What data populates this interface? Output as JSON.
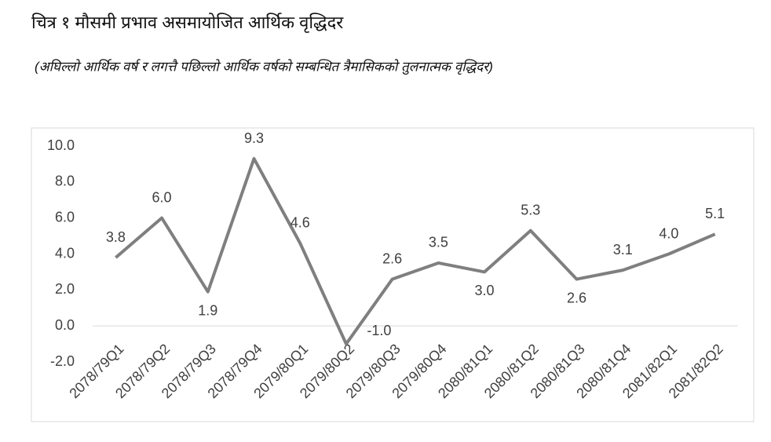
{
  "chart_data": {
    "type": "line",
    "title": "चित्र १ मौसमी प्रभाव असमायोजित आर्थिक वृद्धिदर",
    "subtitle": "(अघिल्लो आर्थिक वर्ष र लगत्तै पछिल्लो आर्थिक वर्षको सम्बन्धित त्रैमासिकको तुलनात्मक वृद्धिदर)",
    "categories": [
      "2078/79Q1",
      "2078/79Q2",
      "2078/79Q3",
      "2078/79Q4",
      "2079/80Q1",
      "2079/80Q2",
      "2079/80Q3",
      "2079/80Q4",
      "2080/81Q1",
      "2080/81Q2",
      "2080/81Q3",
      "2080/81Q4",
      "2081/82Q1",
      "2081/82Q2"
    ],
    "values": [
      3.8,
      6.0,
      1.9,
      9.3,
      4.6,
      -1.0,
      2.6,
      3.5,
      3.0,
      5.3,
      2.6,
      3.1,
      4.0,
      5.1
    ],
    "value_labels": [
      "3.8",
      "6.0",
      "1.9",
      "9.3",
      "4.6",
      "-1.0",
      "2.6",
      "3.5",
      "3.0",
      "5.3",
      "2.6",
      "3.1",
      "4.0",
      "5.1"
    ],
    "color": "#7f7f7f",
    "ylim": [
      -2,
      10
    ],
    "yticks": [
      {
        "value": -2,
        "label": "-2.0"
      },
      {
        "value": 0,
        "label": "0.0"
      },
      {
        "value": 2,
        "label": "2.0"
      },
      {
        "value": 4,
        "label": "4.0"
      },
      {
        "value": 6,
        "label": "6.0"
      },
      {
        "value": 8,
        "label": "8.0"
      },
      {
        "value": 10,
        "label": "10.0"
      }
    ],
    "grid": false
  }
}
